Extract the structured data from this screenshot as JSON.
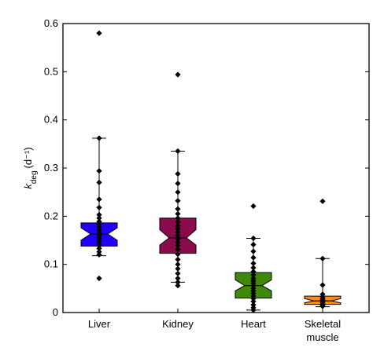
{
  "chart_data": {
    "type": "box",
    "ylabel_main": "k",
    "ylabel_sub": "deg",
    "ylabel_unit": "(d⁻¹)",
    "ylim": [
      0,
      0.6
    ],
    "yticks": [
      "0",
      "0.1",
      "0.2",
      "0.3",
      "0.4",
      "0.5",
      "0.6"
    ],
    "yticks_values": [
      0,
      0.1,
      0.2,
      0.3,
      0.4,
      0.5,
      0.6
    ],
    "categories": [
      {
        "label_lines": [
          "Liver"
        ],
        "color": "#1f00ff",
        "q1": 0.138,
        "median": 0.163,
        "q3": 0.186,
        "notch_low": 0.15,
        "notch_high": 0.176,
        "whisker_low": 0.118,
        "whisker_high": 0.362,
        "points": [
          0.58,
          0.362,
          0.294,
          0.27,
          0.235,
          0.218,
          0.203,
          0.196,
          0.189,
          0.183,
          0.177,
          0.171,
          0.165,
          0.16,
          0.155,
          0.149,
          0.143,
          0.139,
          0.133,
          0.126,
          0.12,
          0.071
        ]
      },
      {
        "label_lines": [
          "Kidney"
        ],
        "color": "#8b0a4b",
        "q1": 0.123,
        "median": 0.155,
        "q3": 0.196,
        "notch_low": 0.14,
        "notch_high": 0.172,
        "whisker_low": 0.063,
        "whisker_high": 0.335,
        "points": [
          0.494,
          0.335,
          0.288,
          0.268,
          0.25,
          0.232,
          0.215,
          0.205,
          0.196,
          0.188,
          0.18,
          0.174,
          0.167,
          0.16,
          0.153,
          0.146,
          0.139,
          0.131,
          0.121,
          0.11,
          0.1,
          0.091,
          0.081,
          0.071,
          0.063,
          0.056
        ]
      },
      {
        "label_lines": [
          "Heart"
        ],
        "color": "#3f8a0a",
        "q1": 0.03,
        "median": 0.056,
        "q3": 0.083,
        "notch_low": 0.045,
        "notch_high": 0.068,
        "whisker_low": 0.005,
        "whisker_high": 0.154,
        "points": [
          0.221,
          0.154,
          0.141,
          0.127,
          0.114,
          0.102,
          0.093,
          0.085,
          0.078,
          0.071,
          0.066,
          0.061,
          0.056,
          0.05,
          0.045,
          0.04,
          0.034,
          0.029,
          0.023,
          0.016,
          0.01,
          0.005
        ]
      },
      {
        "label_lines": [
          "Skeletal",
          "muscle"
        ],
        "color": "#ff8c1a",
        "q1": 0.017,
        "median": 0.024,
        "q3": 0.034,
        "notch_low": 0.02,
        "notch_high": 0.029,
        "whisker_low": 0.012,
        "whisker_high": 0.112,
        "points": [
          0.231,
          0.112,
          0.057,
          0.038,
          0.033,
          0.029,
          0.026,
          0.023,
          0.02,
          0.017,
          0.015,
          0.013
        ]
      }
    ]
  }
}
